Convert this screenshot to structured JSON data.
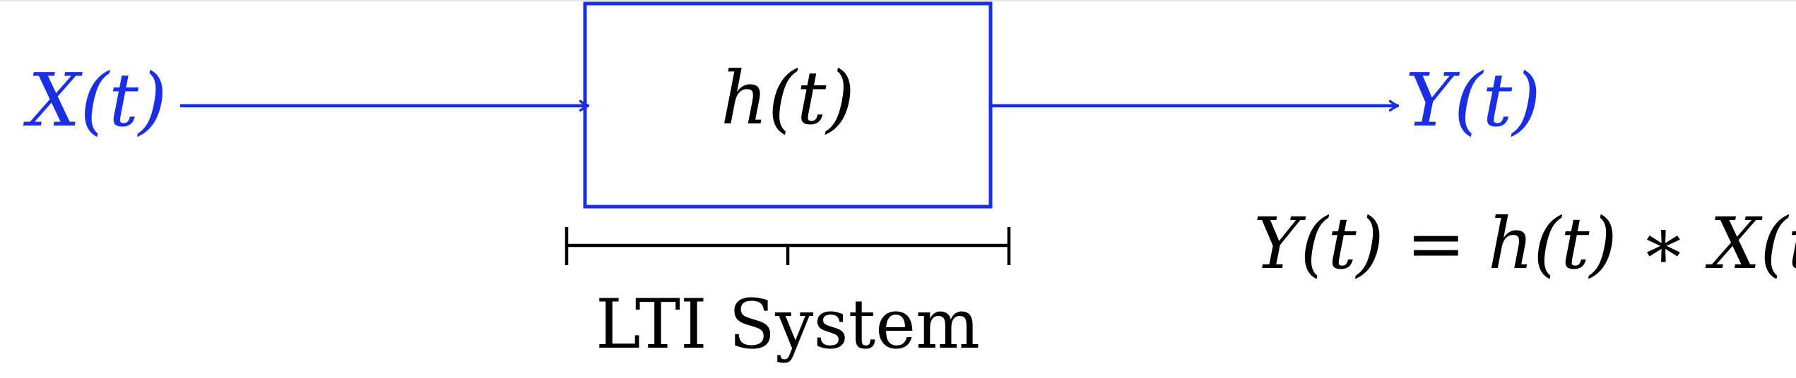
{
  "diagram": {
    "input_label": "X(t)",
    "system_label": "h(t)",
    "output_label": "Y(t)",
    "brace_label": "LTI System",
    "equation": "Y(t) = h(t) ∗ X(t)"
  },
  "colors": {
    "accent": "#1a2ee6",
    "text": "#000000",
    "background": "#ffffff"
  }
}
